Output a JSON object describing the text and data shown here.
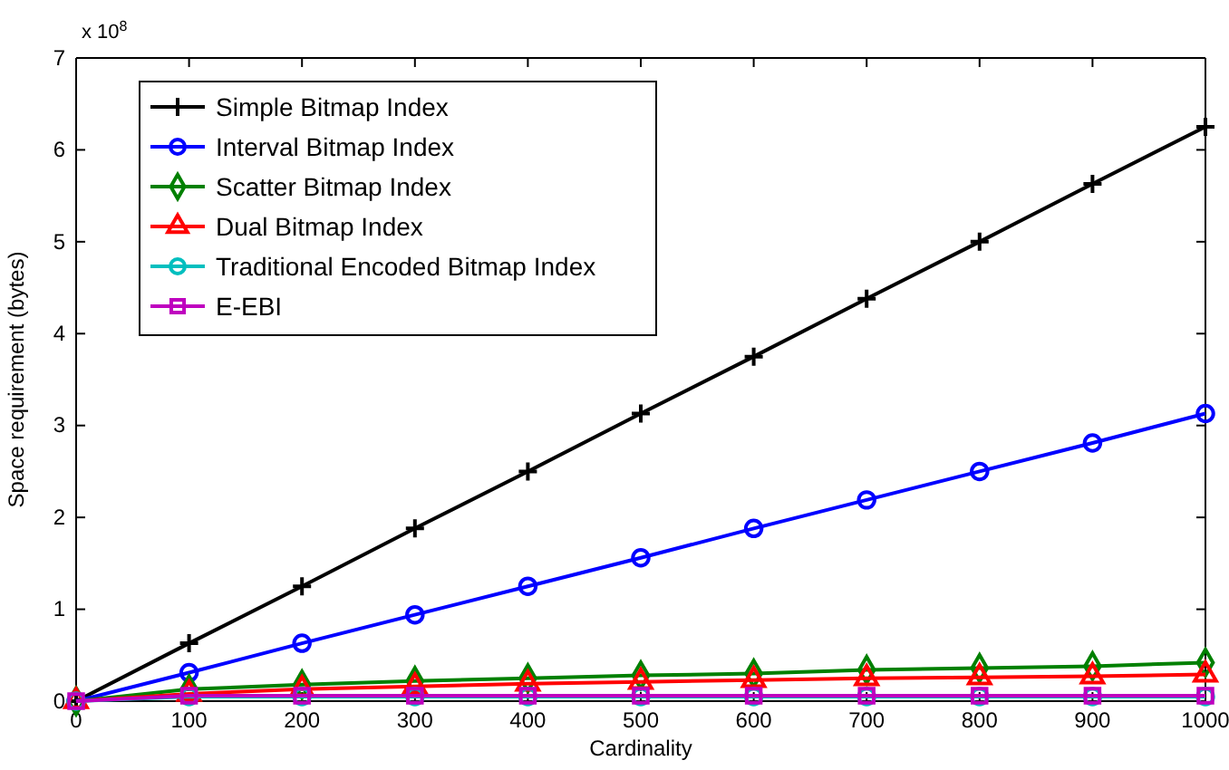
{
  "chart_data": {
    "type": "line",
    "xlabel": "Cardinality",
    "ylabel": "Space requirement (bytes)",
    "annotations": [
      "x 10$^{8}$"
    ],
    "x": [
      0,
      100,
      200,
      300,
      400,
      500,
      600,
      700,
      800,
      900,
      1000
    ],
    "xlim": [
      0,
      1000
    ],
    "xticks": [
      0,
      100,
      200,
      300,
      400,
      500,
      600,
      700,
      800,
      900,
      1000
    ],
    "ylim": [
      0,
      7
    ],
    "yticks": [
      0,
      1,
      2,
      3,
      4,
      5,
      6,
      7
    ],
    "legend": "top left",
    "grid": false,
    "line_style": "solid",
    "series": [
      {
        "name": "Simple Bitmap Index",
        "color": "#000000",
        "marker": "cross",
        "values": [
          0,
          0.63,
          1.25,
          1.88,
          2.5,
          3.13,
          3.75,
          4.38,
          5,
          5.63,
          6.25
        ]
      },
      {
        "name": "Interval Bitmap Index",
        "color": "#0000ff",
        "marker": "circle",
        "values": [
          0,
          0.31,
          0.63,
          0.94,
          1.25,
          1.56,
          1.88,
          2.19,
          2.5,
          2.81,
          3.13
        ]
      },
      {
        "name": "Scatter Bitmap Index",
        "color": "#008000",
        "marker": "diamond",
        "values": [
          0,
          0.13,
          0.18,
          0.22,
          0.25,
          0.28,
          0.3,
          0.34,
          0.36,
          0.38,
          0.42
        ]
      },
      {
        "name": "Dual Bitmap Index",
        "color": "#ff0000",
        "marker": "triangle",
        "values": [
          0,
          0.08,
          0.13,
          0.16,
          0.19,
          0.21,
          0.23,
          0.25,
          0.26,
          0.27,
          0.29
        ]
      },
      {
        "name": "Traditional Encoded Bitmap Index",
        "color": "#00bfbf",
        "marker": "circle",
        "values": [
          0,
          0.05,
          0.05,
          0.05,
          0.05,
          0.05,
          0.05,
          0.05,
          0.05,
          0.05,
          0.05
        ]
      },
      {
        "name": "E-EBI",
        "color": "#bf00bf",
        "marker": "square",
        "values": [
          0,
          0.06,
          0.06,
          0.06,
          0.06,
          0.06,
          0.06,
          0.06,
          0.06,
          0.06,
          0.06
        ]
      }
    ]
  }
}
